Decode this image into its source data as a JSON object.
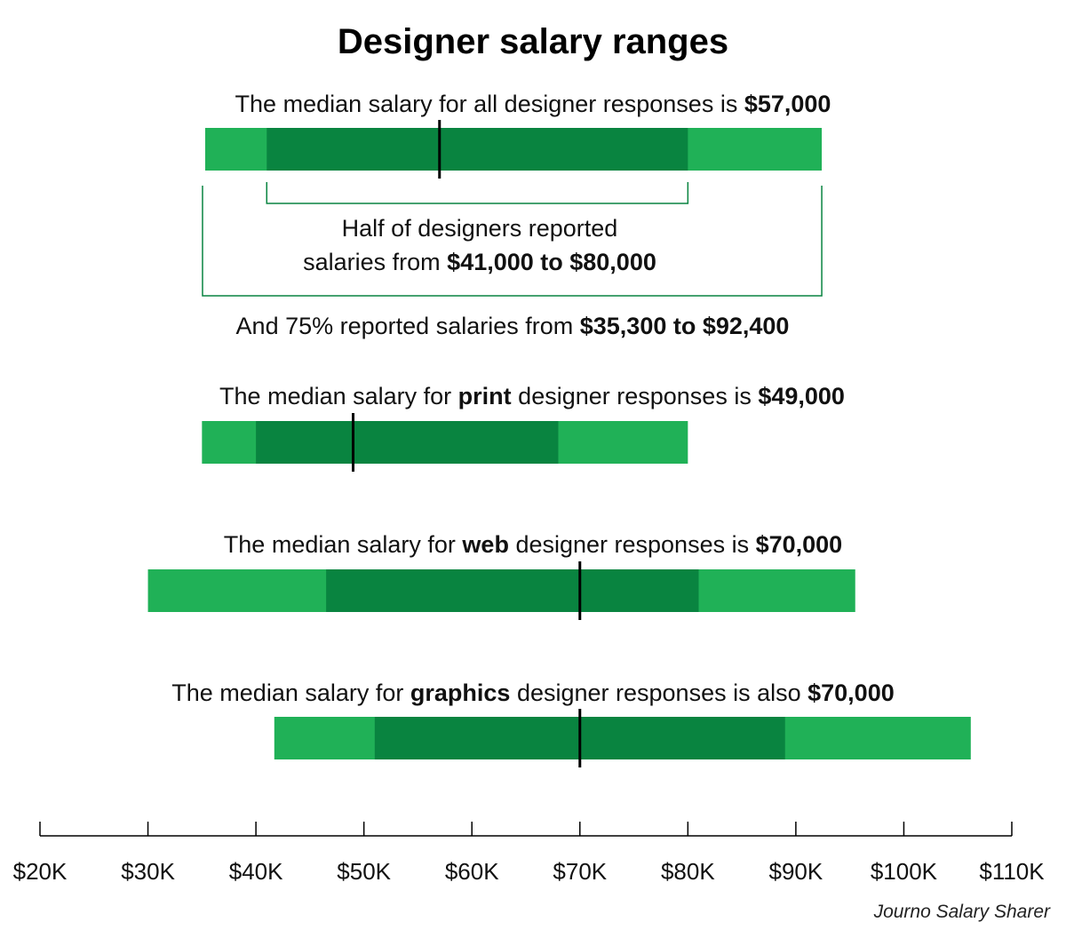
{
  "title": "Designer salary ranges",
  "credit": "Journo Salary Sharer",
  "colors": {
    "outer_range": "#20b157",
    "inner_range": "#098440",
    "median": "#000000",
    "bracket": "#098440"
  },
  "notes": {
    "all": {
      "pre": "The median salary for all designer responses is ",
      "median": "$57,000"
    },
    "half_line1": "Half of designers reported",
    "half_pre": "salaries from ",
    "half_range": "$41,000 to $80,000",
    "seventyfive_pre": "And 75% reported salaries from ",
    "seventyfive_range": "$35,300 to $92,400",
    "print": {
      "pre": "The median salary for ",
      "cat": "print",
      "post": " designer responses is ",
      "median": "$49,000"
    },
    "web": {
      "pre": "The median salary for ",
      "cat": "web",
      "post": " designer responses is ",
      "median": "$70,000"
    },
    "graphics": {
      "pre": "The median salary for ",
      "cat": "graphics",
      "post": " designer responses is also ",
      "median": "$70,000"
    }
  },
  "chart_data": {
    "type": "range-bar",
    "title": "Designer salary ranges",
    "x_ticks": [
      20000,
      30000,
      40000,
      50000,
      60000,
      70000,
      80000,
      90000,
      100000,
      110000
    ],
    "x_tick_labels": [
      "$20K",
      "$30K",
      "$40K",
      "$50K",
      "$60K",
      "$70K",
      "$80K",
      "$90K",
      "$100K",
      "$110K"
    ],
    "xlim": [
      20000,
      110000
    ],
    "series": [
      {
        "name": "all",
        "outer": [
          35300,
          92400
        ],
        "inner": [
          41000,
          80000
        ],
        "median": 57000
      },
      {
        "name": "print",
        "outer": [
          35000,
          80000
        ],
        "inner": [
          40000,
          68000
        ],
        "median": 49000
      },
      {
        "name": "web",
        "outer": [
          30000,
          95500
        ],
        "inner": [
          46500,
          81000
        ],
        "median": 70000
      },
      {
        "name": "graphics",
        "outer": [
          41700,
          106200
        ],
        "inner": [
          51000,
          89000
        ],
        "median": 70000
      }
    ]
  }
}
